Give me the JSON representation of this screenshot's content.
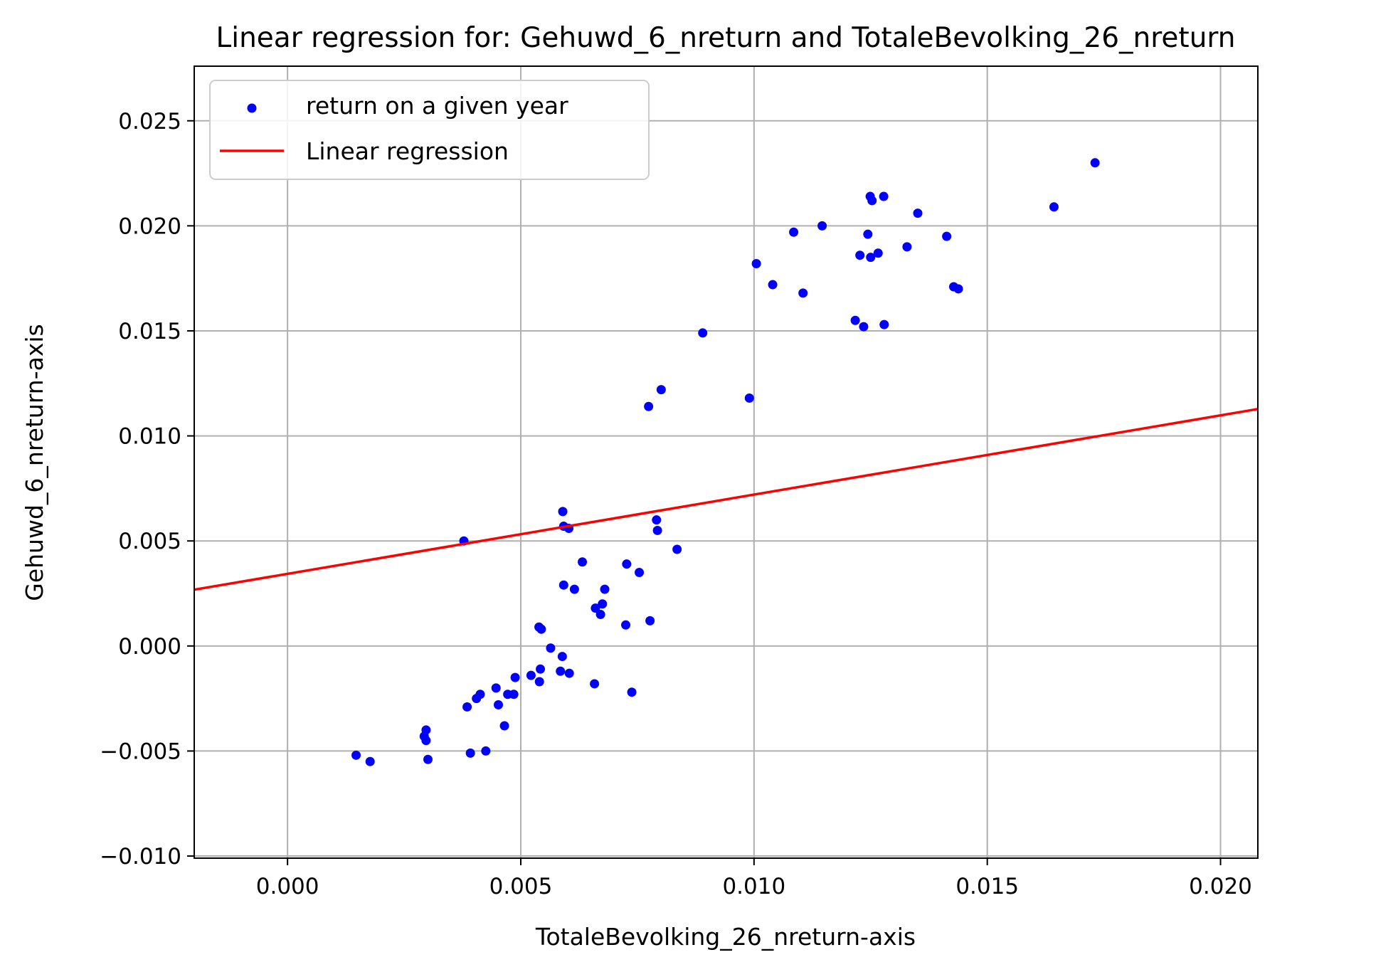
{
  "chart_data": {
    "type": "scatter",
    "title": "Linear regression for: Gehuwd_6_nreturn and TotaleBevolking_26_nreturn",
    "xlabel": "TotaleBevolking_26_nreturn-axis",
    "ylabel": "Gehuwd_6_nreturn-axis",
    "xlim": [
      -0.002,
      0.0208
    ],
    "ylim": [
      -0.0101,
      0.0276
    ],
    "x_ticks": [
      0.0,
      0.005,
      0.01,
      0.015,
      0.02
    ],
    "x_tick_labels": [
      "0.000",
      "0.005",
      "0.010",
      "0.015",
      "0.020"
    ],
    "y_ticks": [
      -0.01,
      -0.005,
      0.0,
      0.005,
      0.01,
      0.015,
      0.02,
      0.025
    ],
    "y_tick_labels": [
      "−0.010",
      "−0.005",
      "0.000",
      "0.005",
      "0.010",
      "0.015",
      "0.020",
      "0.025"
    ],
    "grid": true,
    "legend_position": "top-left",
    "series": [
      {
        "name": "return on a given year",
        "kind": "scatter",
        "color": "#0000ff",
        "points": [
          [
            0.00147,
            -0.0052
          ],
          [
            0.00177,
            -0.0055
          ],
          [
            0.00293,
            -0.0043
          ],
          [
            0.00297,
            -0.004
          ],
          [
            0.00297,
            -0.0045
          ],
          [
            0.00301,
            -0.0054
          ],
          [
            0.00378,
            0.005
          ],
          [
            0.00385,
            -0.0029
          ],
          [
            0.00392,
            -0.0051
          ],
          [
            0.00405,
            -0.0025
          ],
          [
            0.00413,
            -0.0023
          ],
          [
            0.00425,
            -0.005
          ],
          [
            0.00447,
            -0.002
          ],
          [
            0.00452,
            -0.0028
          ],
          [
            0.00465,
            -0.0038
          ],
          [
            0.00472,
            -0.0023
          ],
          [
            0.00485,
            -0.0023
          ],
          [
            0.00488,
            -0.0015
          ],
          [
            0.00522,
            -0.0014
          ],
          [
            0.00539,
            0.0009
          ],
          [
            0.0054,
            -0.0017
          ],
          [
            0.00542,
            -0.0011
          ],
          [
            0.00544,
            0.0008
          ],
          [
            0.00564,
            -0.0001
          ],
          [
            0.00585,
            -0.0012
          ],
          [
            0.00589,
            -0.0005
          ],
          [
            0.0059,
            0.0064
          ],
          [
            0.00592,
            0.0057
          ],
          [
            0.00592,
            0.0029
          ],
          [
            0.00603,
            0.0056
          ],
          [
            0.00604,
            -0.0013
          ],
          [
            0.00615,
            0.0027
          ],
          [
            0.00632,
            0.004
          ],
          [
            0.00658,
            -0.0018
          ],
          [
            0.0066,
            0.0018
          ],
          [
            0.00671,
            0.0015
          ],
          [
            0.00675,
            0.002
          ],
          [
            0.0068,
            0.0027
          ],
          [
            0.00725,
            0.001
          ],
          [
            0.00727,
            0.0039
          ],
          [
            0.00738,
            -0.0022
          ],
          [
            0.00754,
            0.0035
          ],
          [
            0.00774,
            0.0114
          ],
          [
            0.00777,
            0.0012
          ],
          [
            0.00791,
            0.006
          ],
          [
            0.00793,
            0.0055
          ],
          [
            0.00801,
            0.0122
          ],
          [
            0.00835,
            0.0046
          ],
          [
            0.0089,
            0.0149
          ],
          [
            0.0099,
            0.0118
          ],
          [
            0.01005,
            0.0182
          ],
          [
            0.0104,
            0.0172
          ],
          [
            0.01085,
            0.0197
          ],
          [
            0.01105,
            0.0168
          ],
          [
            0.01146,
            0.02
          ],
          [
            0.01217,
            0.0155
          ],
          [
            0.01227,
            0.0186
          ],
          [
            0.01235,
            0.0152
          ],
          [
            0.01244,
            0.0196
          ],
          [
            0.01249,
            0.0214
          ],
          [
            0.0125,
            0.0185
          ],
          [
            0.01253,
            0.0212
          ],
          [
            0.01266,
            0.0187
          ],
          [
            0.01278,
            0.0214
          ],
          [
            0.01279,
            0.0153
          ],
          [
            0.01328,
            0.019
          ],
          [
            0.01351,
            0.0206
          ],
          [
            0.01413,
            0.0195
          ],
          [
            0.01428,
            0.0171
          ],
          [
            0.01438,
            0.017
          ],
          [
            0.01643,
            0.0209
          ],
          [
            0.01731,
            0.023
          ]
        ]
      },
      {
        "name": "Linear regression",
        "kind": "line",
        "color": "#ff0000",
        "points": [
          [
            -0.002,
            0.00268
          ],
          [
            0.0208,
            0.01128
          ]
        ]
      }
    ]
  }
}
